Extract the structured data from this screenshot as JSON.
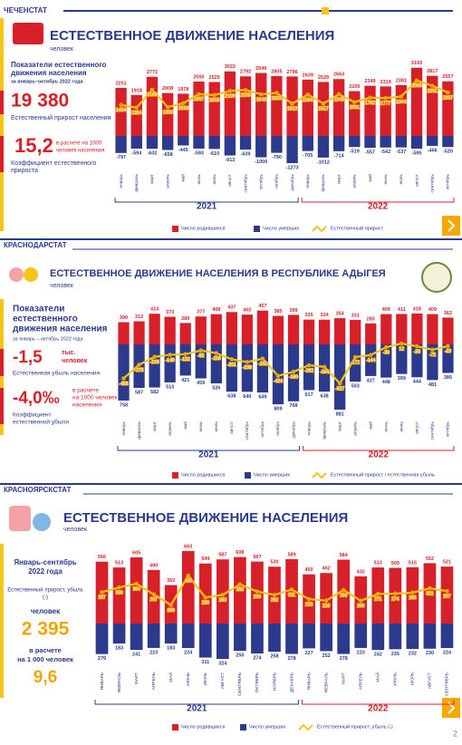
{
  "page_number": "2",
  "panels": [
    {
      "agency": "ЧЕЧЕНСТАТ",
      "stats": [
        "Показатели естественного",
        "движения населения",
        "за январь–октябрь 2022 года",
        "19 380",
        "Естественный прирост населения",
        "15,2",
        "в расчете на 1000",
        "человек населения",
        "Коэффициент естественного",
        "прироста"
      ]
    },
    {
      "agency": "КРАСНОДАРСТАТ",
      "stats": [
        "Показатели",
        "естественного",
        "движения населения",
        "за январь – октябрь 2022 года",
        "-1,5",
        "тыс.",
        "человек",
        "Естественная убыль  населения",
        "-4,0‰",
        "в расчете",
        "на 1000 человек",
        "населения",
        "Коэффициент",
        "естественной убыли"
      ]
    },
    {
      "agency": "КРАСНОЯРСКСТАТ",
      "stats": [
        "Январь-сентябрь",
        "2022 года",
        "Естественный прирост, убыль",
        "(-)",
        "человек",
        "2 395",
        "в расчете",
        "на 1 000 человек",
        "9,6"
      ]
    }
  ],
  "chart_data": [
    {
      "type": "bar",
      "title": "ЕСТЕСТВЕННОЕ ДВИЖЕНИЕ НАСЕЛЕНИЯ",
      "subtitle": "человек",
      "categories": [
        "январь",
        "февраль",
        "март",
        "апрель",
        "май",
        "июнь",
        "июль",
        "август",
        "сентябрь",
        "октябрь",
        "ноябрь",
        "декабрь",
        "январь",
        "февраль",
        "март",
        "апрель",
        "май",
        "июнь",
        "июль",
        "август",
        "сентябрь",
        "октябрь"
      ],
      "years": [
        "2021",
        "2022"
      ],
      "series": [
        {
          "name": "Число родившихся",
          "color": "#d7202a",
          "values": [
            2251,
            1918,
            2771,
            2008,
            1978,
            2550,
            2525,
            3022,
            2792,
            2949,
            2805,
            2786,
            2639,
            2529,
            2663,
            2100,
            2349,
            2319,
            2381,
            3193,
            2817,
            2557
          ]
        },
        {
          "name": "Число умерших",
          "color": "#2b3a8c",
          "values": [
            -797,
            -594,
            -602,
            -658,
            -445,
            -593,
            -610,
            -913,
            -639,
            -1000,
            -790,
            -1273,
            -705,
            -1012,
            -714,
            -519,
            -557,
            -542,
            -537,
            -595,
            -466,
            -520
          ]
        },
        {
          "name": "Естественный прирост",
          "color": "#f5c518",
          "type": "line",
          "values": [
            1454,
            1324,
            2169,
            1350,
            1533,
            1957,
            1915,
            2109,
            2153,
            1949,
            2015,
            1513,
            1934,
            1517,
            1949,
            1581,
            1792,
            1777,
            1844,
            2598,
            2351,
            2037
          ]
        }
      ]
    },
    {
      "type": "bar",
      "title": "ЕСТЕСТВЕННОЕ ДВИЖЕНИЕ НАСЕЛЕНИЯ В РЕСПУБЛИКЕ АДЫГЕЯ",
      "subtitle": "человек",
      "categories": [
        "январь",
        "февраль",
        "март",
        "апрель",
        "май",
        "июнь",
        "июль",
        "август",
        "сентябрь",
        "октябрь",
        "ноябрь",
        "декабрь",
        "январь",
        "февраль",
        "март",
        "апрель",
        "май",
        "июнь",
        "июль",
        "август",
        "сентябрь",
        "октябрь"
      ],
      "years": [
        "2021",
        "2022"
      ],
      "series": [
        {
          "name": "Число родившихся",
          "color": "#d7202a",
          "values": [
            300,
            312,
            414,
            373,
            289,
            377,
            408,
            437,
            402,
            457,
            385,
            399,
            335,
            334,
            354,
            331,
            283,
            409,
            411,
            418,
            409,
            362
          ]
        },
        {
          "name": "Число умерших",
          "color": "#2b3a8c",
          "values": [
            758,
            587,
            582,
            513,
            421,
            459,
            526,
            638,
            640,
            649,
            809,
            768,
            617,
            638,
            881,
            503,
            427,
            448,
            399,
            444,
            481,
            385
          ]
        },
        {
          "name": "Естественный прирост / естественная убыль",
          "color": "#f5c518",
          "type": "line",
          "values": [
            -458,
            -275,
            -168,
            -140,
            -132,
            -82,
            -118,
            -201,
            -238,
            -192,
            -424,
            -369,
            -282,
            -304,
            -527,
            -172,
            -144,
            -39,
            12,
            -26,
            -72,
            -23
          ]
        }
      ]
    },
    {
      "type": "bar",
      "title": "ЕСТЕСТВЕННОЕ ДВИЖЕНИЕ НАСЕЛЕНИЯ",
      "subtitle": "человек",
      "categories": [
        "ЯНВАРЬ",
        "ФЕВРАЛЬ",
        "МАРТ",
        "АПРЕЛЬ",
        "МАЙ",
        "ИЮНЬ",
        "ИЮЛЬ",
        "АВГУСТ",
        "СЕНТЯБРЬ",
        "ОКТЯБРЬ",
        "НОЯБРЬ",
        "ДЕКАБРЬ",
        "ЯНВАРЬ",
        "ФЕВРАЛЬ",
        "МАРТ",
        "АПРЕЛЬ",
        "МАЙ",
        "ИЮНЬ",
        "ИЮЛЬ",
        "АВГУСТ",
        "СЕНТЯБРЬ"
      ],
      "years": [
        "2021",
        "2022"
      ],
      "series": [
        {
          "name": "Число родившихся",
          "color": "#d7202a",
          "values": [
            566,
            513,
            605,
            490,
            352,
            663,
            549,
            587,
            608,
            567,
            520,
            589,
            450,
            462,
            584,
            432,
            513,
            509,
            515,
            552,
            521
          ]
        },
        {
          "name": "Число умерших",
          "color": "#2b3a8c",
          "values": [
            279,
            183,
            241,
            223,
            183,
            224,
            311,
            324,
            250,
            274,
            258,
            278,
            227,
            252,
            278,
            223,
            242,
            235,
            232,
            230,
            224
          ]
        },
        {
          "name": "Естественный прирост, убыль (-)",
          "color": "#f5c518",
          "type": "line",
          "values": [
            287,
            330,
            364,
            267,
            169,
            439,
            238,
            263,
            358,
            293,
            262,
            311,
            223,
            210,
            306,
            209,
            271,
            274,
            283,
            322,
            297
          ]
        }
      ]
    }
  ]
}
